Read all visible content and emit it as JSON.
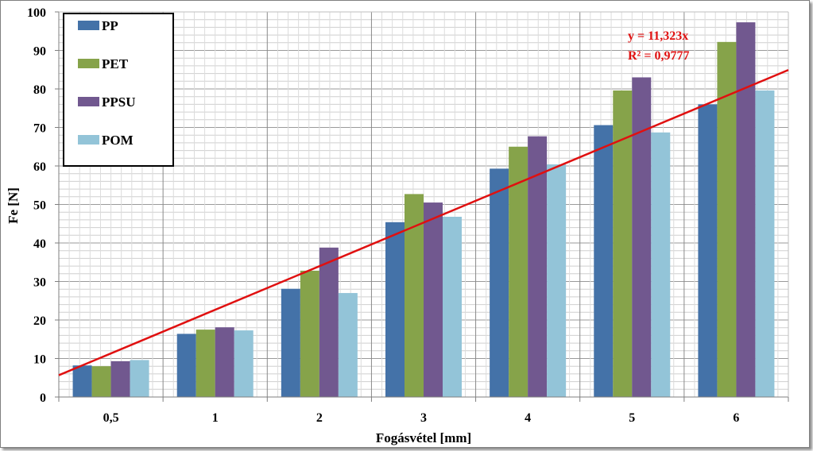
{
  "chart_data": {
    "type": "bar",
    "title": "",
    "xlabel": "Fogásvétel [mm]",
    "ylabel": "Fe [N]",
    "categories": [
      "0,5",
      "1",
      "2",
      "3",
      "4",
      "5",
      "6"
    ],
    "ylim": [
      0,
      100
    ],
    "yticks": [
      "0",
      "10",
      "20",
      "30",
      "40",
      "50",
      "60",
      "70",
      "80",
      "90",
      "100"
    ],
    "grid": true,
    "legend_position": "top-left",
    "series": [
      {
        "name": "PP",
        "color": "#4472a8",
        "values": [
          8.2,
          16.4,
          28.1,
          45.4,
          59.3,
          70.6,
          76.0
        ]
      },
      {
        "name": "PET",
        "color": "#86a34a",
        "values": [
          8.0,
          17.5,
          32.8,
          52.7,
          65.0,
          79.6,
          92.2
        ]
      },
      {
        "name": "PPSU",
        "color": "#71588f",
        "values": [
          9.3,
          18.1,
          38.8,
          50.5,
          67.7,
          83.0,
          97.3
        ]
      },
      {
        "name": "POM",
        "color": "#93c4d8",
        "values": [
          9.6,
          17.3,
          27.0,
          46.8,
          60.4,
          68.7,
          79.6
        ]
      }
    ],
    "trendline": {
      "color": "#e01010",
      "equation": "y = 11,323x",
      "r_squared": "R² = 0,9777",
      "slope": 11.323
    }
  }
}
